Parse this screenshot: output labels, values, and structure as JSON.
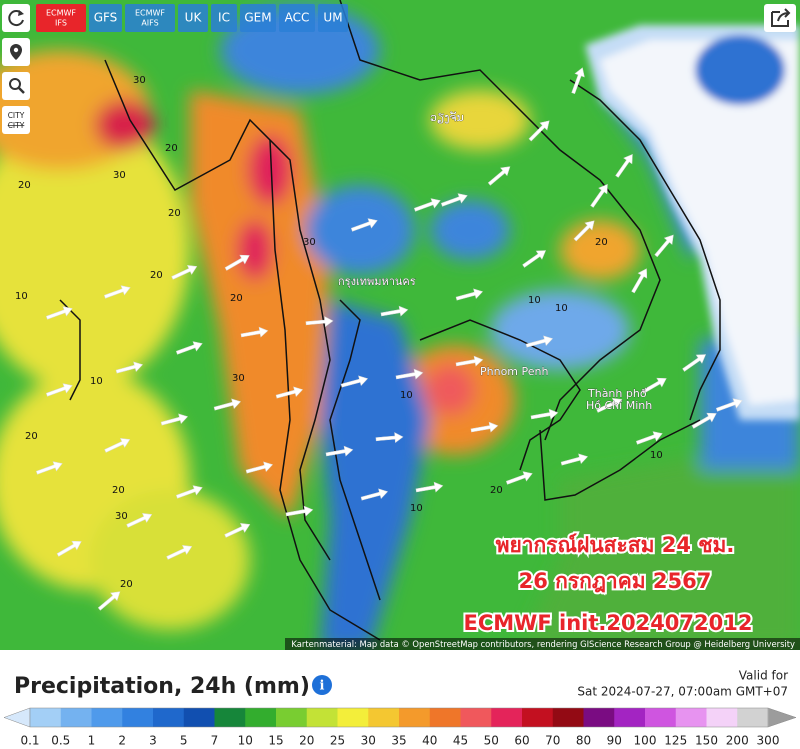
{
  "toolbar": {
    "buttons": [
      [
        "ECMWF",
        "IFS"
      ],
      [
        "GFS"
      ],
      [
        "ECMWF",
        "AIFS"
      ],
      [
        "UK"
      ],
      [
        "IC"
      ],
      [
        "GEM"
      ],
      [
        "ACC"
      ],
      [
        "UM"
      ]
    ],
    "active": 0,
    "city_button": [
      "CITY",
      "CITY"
    ]
  },
  "map": {
    "places": [
      "กรุงเทพมหานคร",
      "Phnom Penh",
      "Thành phố",
      "Hồ Chí Minh",
      "ວຽງຈັນ"
    ],
    "contour_labels": [
      "30",
      "20",
      "20",
      "30",
      "20",
      "10",
      "30",
      "20",
      "20",
      "10",
      "30",
      "20",
      "10",
      "20",
      "10",
      "20",
      "20",
      "10",
      "20",
      "10",
      "30",
      "10"
    ],
    "overlay": [
      "พยากรณ์ฝนสะสม 24 ชม.",
      "26 กรกฎาคม 2567",
      "ECMWF init.2024072012"
    ],
    "attribution": "Kartenmaterial: Map data © OpenStreetMap contributors, rendering GIScience Research Group @ Heidelberg University"
  },
  "panel": {
    "title": "Precipitation, 24h (mm)",
    "valid_label": "Valid for",
    "valid_time": "Sat 2024-07-27, 07:00am GMT+07",
    "legend": {
      "labels": [
        0.1,
        0.5,
        1,
        2,
        3,
        5,
        7,
        10,
        15,
        20,
        25,
        30,
        35,
        40,
        45,
        50,
        60,
        70,
        80,
        90,
        100,
        125,
        150,
        200,
        300
      ],
      "colors": [
        "#a3cff6",
        "#74b2f0",
        "#4f9aeb",
        "#3281e0",
        "#1f68cc",
        "#114fb0",
        "#16863a",
        "#33ad2e",
        "#79cd31",
        "#c3e236",
        "#f3ee3a",
        "#f4c731",
        "#f49a2b",
        "#ef7629",
        "#f0585c",
        "#e4245a",
        "#c31020",
        "#930a14",
        "#7a0c82",
        "#a324c2",
        "#cf55e0",
        "#e793f0",
        "#f4d2f8",
        "#d2d2d2"
      ],
      "under_color": "#d6e8fb",
      "over_color": "#9c9c9c"
    }
  }
}
